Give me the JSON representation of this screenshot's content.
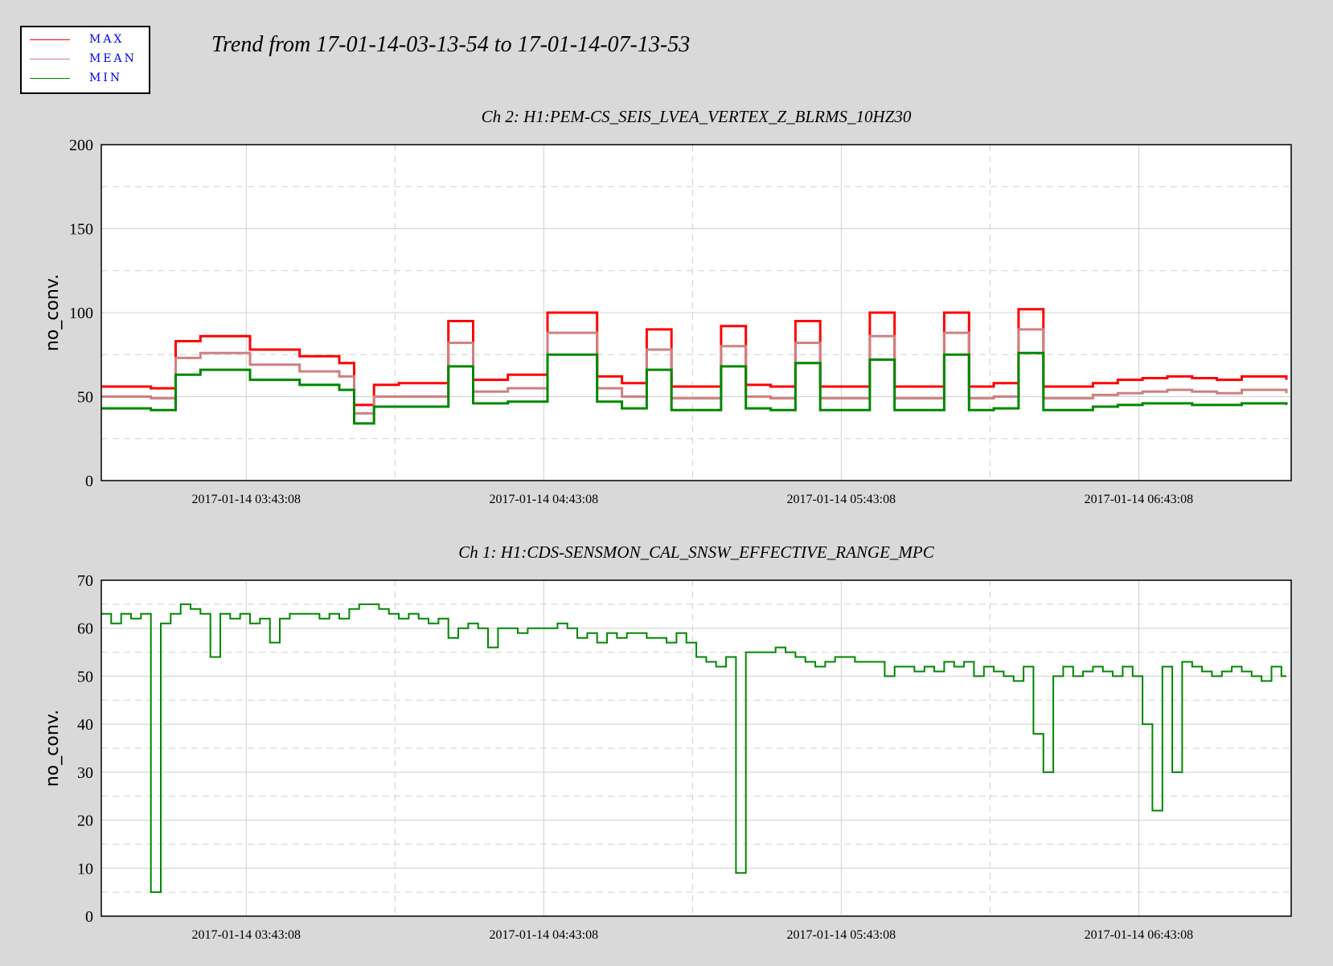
{
  "title": "Trend from 17-01-14-03-13-54 to 17-01-14-07-13-53",
  "legend": [
    {
      "label": "MAX",
      "color": "#ff0000"
    },
    {
      "label": "MEAN",
      "color": "#d08080"
    },
    {
      "label": "MIN",
      "color": "#008800"
    }
  ],
  "legend_text_color": "#0000ff",
  "chart_data": [
    {
      "type": "line",
      "title": "Ch 2: H1:PEM-CS_SEIS_LVEA_VERTEX_Z_BLRMS_10HZ30",
      "ylabel": "no_conv.",
      "xlabel": "",
      "ylim": [
        0,
        200
      ],
      "yticks": [
        0,
        50,
        100,
        150,
        200
      ],
      "xlim": [
        "2017-01-14 03:13:54",
        "2017-01-14 07:13:53"
      ],
      "xticks": [
        "2017-01-14 03:43:08",
        "2017-01-14 04:43:08",
        "2017-01-14 05:43:08",
        "2017-01-14 06:43:08"
      ],
      "grid": true,
      "x_unit": "minutes_after_start",
      "x": [
        0,
        10,
        15,
        20,
        30,
        40,
        48,
        51,
        55,
        60,
        70,
        75,
        82,
        90,
        100,
        105,
        110,
        115,
        120,
        125,
        130,
        135,
        140,
        145,
        150,
        155,
        160,
        165,
        170,
        175,
        180,
        185,
        190,
        195,
        200,
        205,
        210,
        215,
        220,
        225,
        230,
        239
      ],
      "series": [
        {
          "name": "MAX",
          "values": [
            56,
            55,
            83,
            86,
            78,
            74,
            70,
            45,
            57,
            58,
            95,
            60,
            63,
            100,
            62,
            58,
            90,
            56,
            56,
            92,
            57,
            56,
            95,
            56,
            56,
            100,
            56,
            56,
            100,
            56,
            58,
            102,
            56,
            56,
            58,
            60,
            61,
            62,
            61,
            60,
            62,
            60
          ]
        },
        {
          "name": "MEAN",
          "values": [
            50,
            49,
            73,
            76,
            69,
            65,
            62,
            40,
            50,
            50,
            82,
            53,
            55,
            88,
            55,
            50,
            78,
            49,
            49,
            80,
            50,
            49,
            82,
            49,
            49,
            86,
            49,
            49,
            88,
            49,
            50,
            90,
            49,
            49,
            51,
            52,
            53,
            54,
            53,
            52,
            54,
            52
          ]
        },
        {
          "name": "MIN",
          "values": [
            43,
            42,
            63,
            66,
            60,
            57,
            54,
            34,
            44,
            44,
            68,
            46,
            47,
            75,
            47,
            43,
            66,
            42,
            42,
            68,
            43,
            42,
            70,
            42,
            42,
            72,
            42,
            42,
            75,
            42,
            43,
            76,
            42,
            42,
            44,
            45,
            46,
            46,
            45,
            45,
            46,
            45
          ]
        }
      ]
    },
    {
      "type": "line",
      "title": "Ch 1: H1:CDS-SENSMON_CAL_SNSW_EFFECTIVE_RANGE_MPC",
      "ylabel": "no_conv.",
      "xlabel": "",
      "ylim": [
        0,
        70
      ],
      "yticks": [
        0,
        10,
        20,
        30,
        40,
        50,
        60,
        70
      ],
      "xlim": [
        "2017-01-14 03:13:54",
        "2017-01-14 07:13:53"
      ],
      "xticks": [
        "2017-01-14 03:43:08",
        "2017-01-14 04:43:08",
        "2017-01-14 05:43:08",
        "2017-01-14 06:43:08"
      ],
      "grid": true,
      "x_unit": "minutes_after_start",
      "x": [
        0,
        2,
        4,
        6,
        8,
        10,
        12,
        14,
        16,
        18,
        20,
        22,
        24,
        26,
        28,
        30,
        32,
        34,
        36,
        38,
        40,
        42,
        44,
        46,
        48,
        50,
        52,
        54,
        56,
        58,
        60,
        62,
        64,
        66,
        68,
        70,
        72,
        74,
        76,
        78,
        80,
        82,
        84,
        86,
        88,
        90,
        92,
        94,
        96,
        98,
        100,
        102,
        104,
        106,
        108,
        110,
        112,
        114,
        116,
        118,
        120,
        122,
        124,
        126,
        128,
        130,
        132,
        134,
        136,
        138,
        140,
        142,
        144,
        146,
        148,
        150,
        152,
        154,
        156,
        158,
        160,
        162,
        164,
        166,
        168,
        170,
        172,
        174,
        176,
        178,
        180,
        182,
        184,
        186,
        188,
        190,
        192,
        194,
        196,
        198,
        200,
        202,
        204,
        206,
        208,
        210,
        212,
        214,
        216,
        218,
        220,
        222,
        224,
        226,
        228,
        230,
        232,
        234,
        236,
        238,
        239
      ],
      "series": [
        {
          "name": "MIN",
          "values": [
            63,
            61,
            63,
            62,
            63,
            5,
            61,
            63,
            65,
            64,
            63,
            54,
            63,
            62,
            63,
            61,
            62,
            57,
            62,
            63,
            63,
            63,
            62,
            63,
            62,
            64,
            65,
            65,
            64,
            63,
            62,
            63,
            62,
            61,
            62,
            58,
            60,
            61,
            60,
            56,
            60,
            60,
            59,
            60,
            60,
            60,
            61,
            60,
            58,
            59,
            57,
            59,
            58,
            59,
            59,
            58,
            58,
            57,
            59,
            57,
            54,
            53,
            52,
            54,
            9,
            55,
            55,
            55,
            56,
            55,
            54,
            53,
            52,
            53,
            54,
            54,
            53,
            53,
            53,
            50,
            52,
            52,
            51,
            52,
            51,
            53,
            52,
            53,
            50,
            52,
            51,
            50,
            49,
            52,
            38,
            30,
            50,
            52,
            50,
            51,
            52,
            51,
            50,
            52,
            50,
            40,
            22,
            52,
            30,
            53,
            52,
            51,
            50,
            51,
            52,
            51,
            50,
            49,
            52,
            50,
            50
          ]
        }
      ]
    }
  ]
}
